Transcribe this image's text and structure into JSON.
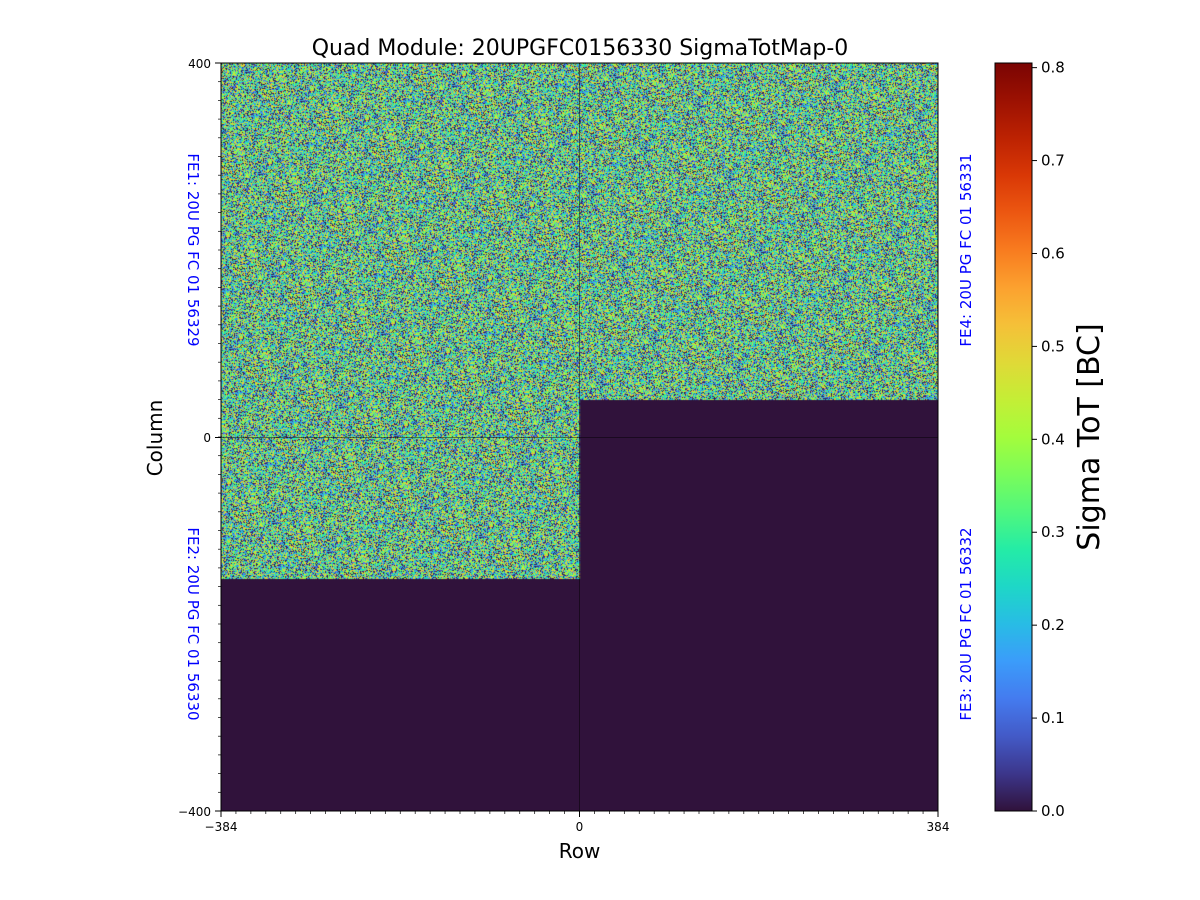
{
  "chart_data": {
    "type": "heatmap",
    "title": "Quad Module: 20UPGFC0156330 SigmaTotMap-0",
    "xlabel": "Row",
    "ylabel": "Column",
    "xlim": [
      -384,
      384
    ],
    "ylim": [
      -400,
      400
    ],
    "x_ticks": [
      "−384",
      "0",
      "384"
    ],
    "y_ticks": [
      "400",
      "0",
      "−400"
    ],
    "colormap": "turbo",
    "colorbar": {
      "label": "Sigma ToT [BC]",
      "range": [
        0.0,
        0.8
      ],
      "ticks": [
        "0.0",
        "0.1",
        "0.2",
        "0.3",
        "0.4",
        "0.5",
        "0.6",
        "0.7",
        "0.8"
      ]
    },
    "front_ends": [
      {
        "label": "FE1: 20U PG FC 01 56329",
        "side": "left",
        "quadrant": "top-left"
      },
      {
        "label": "FE2: 20U PG FC 01 56330",
        "side": "left",
        "quadrant": "bottom-left"
      },
      {
        "label": "FE4: 20U PG FC 01 56331",
        "side": "right",
        "quadrant": "top-right"
      },
      {
        "label": "FE3: 20U PG FC 01 56332",
        "side": "right",
        "quadrant": "bottom-right"
      }
    ],
    "regions": [
      {
        "name": "top-left-noise",
        "x": [
          -384,
          0
        ],
        "y": [
          0,
          400
        ],
        "fill": "noise"
      },
      {
        "name": "top-right-noise",
        "x": [
          0,
          384
        ],
        "y": [
          40,
          400
        ],
        "fill": "noise"
      },
      {
        "name": "bottom-left-noise",
        "x": [
          -384,
          0
        ],
        "y": [
          -152,
          0
        ],
        "fill": "noise"
      },
      {
        "name": "bottom-left-empty",
        "x": [
          -384,
          0
        ],
        "y": [
          -400,
          -152
        ],
        "fill": 0.0
      },
      {
        "name": "bottom-right-empty",
        "x": [
          0,
          384
        ],
        "y": [
          -400,
          40
        ],
        "fill": 0.0
      }
    ],
    "noise_value_range": [
      0.0,
      0.55
    ]
  },
  "colors": {
    "zero": "#32123b",
    "fe_label": "#0000ff"
  }
}
